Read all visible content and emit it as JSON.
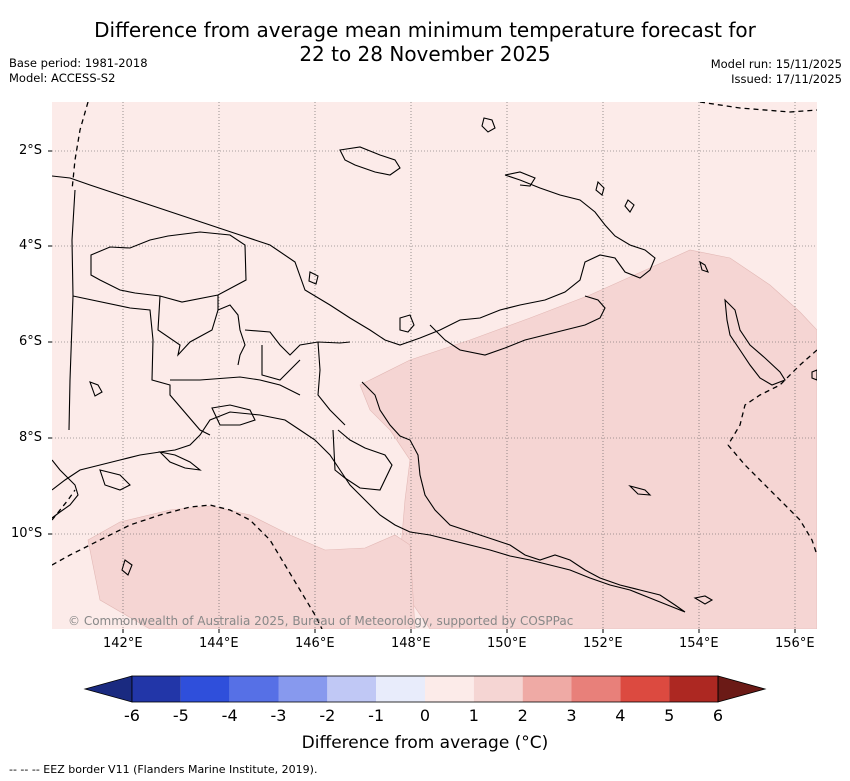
{
  "title": {
    "line1": "Difference from average mean minimum temperature forecast for",
    "line2": "22 to 28 November 2025"
  },
  "meta_left": {
    "base_period": "Base period: 1981-2018",
    "model": "Model: ACCESS-S2"
  },
  "meta_right": {
    "model_run": "Model run: 15/11/2025",
    "issued": "Issued: 17/11/2025"
  },
  "map": {
    "latitude_labels": [
      "2°S",
      "4°S",
      "6°S",
      "8°S",
      "10°S"
    ],
    "longitude_labels": [
      "142°E",
      "144°E",
      "146°E",
      "148°E",
      "150°E",
      "152°E",
      "154°E",
      "156°E"
    ],
    "copyright": "© Commonwealth of Australia 2025, Bureau of Meteorology, supported by COSPPac",
    "region_colors": {
      "zero_to_one": "#fcebe9",
      "one_to_two": "#f5d5d3",
      "coastline": "#000000"
    }
  },
  "colorbar": {
    "tick_labels": [
      "-6",
      "-5",
      "-4",
      "-3",
      "-2",
      "-1",
      "0",
      "1",
      "2",
      "3",
      "4",
      "5",
      "6"
    ],
    "under_color": "#1a2a80",
    "over_color": "#6b1a16",
    "colors": [
      "#2236a8",
      "#2f4fdb",
      "#5670e6",
      "#8799ee",
      "#c0c8f5",
      "#e8ecfb",
      "#fcebe9",
      "#f5d5d3",
      "#efaaa5",
      "#e8807a",
      "#dc4a40",
      "#ad2822"
    ],
    "title": "Difference from average (°C)"
  },
  "footnote": "--  --  -- EEZ border V11 (Flanders Marine Institute, 2019)."
}
